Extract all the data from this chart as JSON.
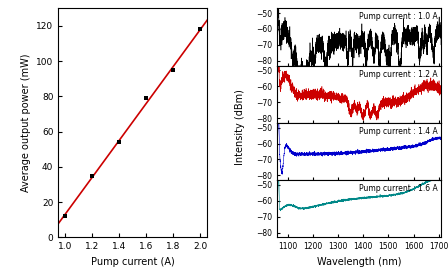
{
  "left_x": [
    1.0,
    1.2,
    1.4,
    1.6,
    1.8,
    2.0
  ],
  "left_y": [
    12,
    35,
    54,
    79,
    95,
    118
  ],
  "left_xlabel": "Pump current (A)",
  "left_ylabel": "Average output power (mW)",
  "left_xlim": [
    0.95,
    2.05
  ],
  "left_ylim": [
    0,
    130
  ],
  "left_xticks": [
    1.0,
    1.2,
    1.4,
    1.6,
    1.8,
    2.0
  ],
  "left_yticks": [
    0,
    20,
    40,
    60,
    80,
    100,
    120
  ],
  "line_color": "#cc0000",
  "marker_color": "black",
  "right_labels": [
    "Pump current : 1.0 A",
    "Pump current : 1.2 A",
    "Pump current : 1.4 A",
    "Pump current : 1.6 A"
  ],
  "right_colors": [
    "black",
    "#cc0000",
    "#0000cc",
    "#008888"
  ],
  "right_ylim": [
    -83,
    -47
  ],
  "right_yticks": [
    -80,
    -70,
    -60,
    -50
  ],
  "right_xlim": [
    1060,
    1710
  ],
  "right_xticks": [
    1100,
    1200,
    1300,
    1400,
    1500,
    1600,
    1700
  ],
  "right_xlabel": "Wavelength (nm)",
  "right_ylabel": "Intensity (dBm)"
}
